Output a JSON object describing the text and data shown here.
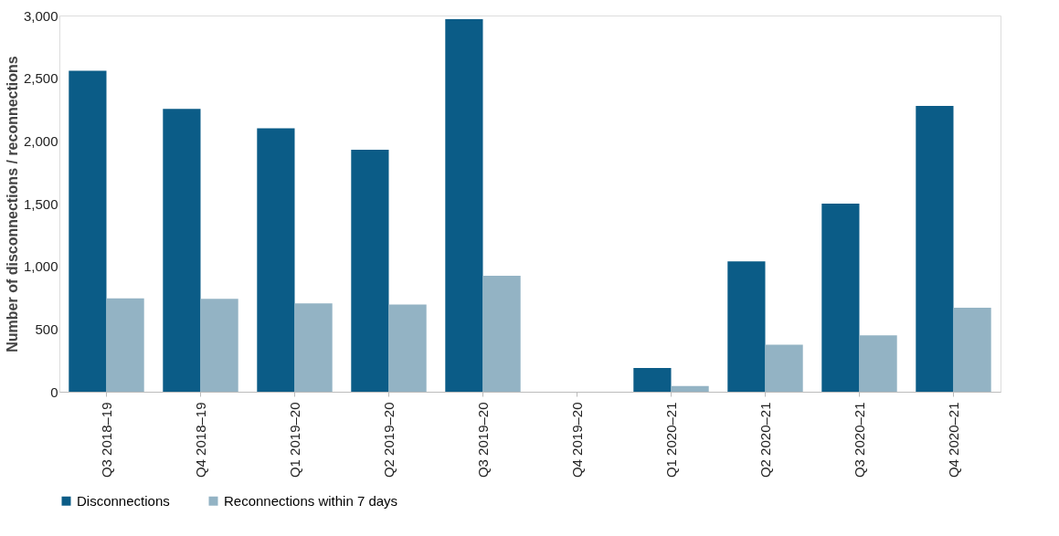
{
  "chart_data": {
    "type": "bar",
    "ylabel": "Number of disconnections / reconnections",
    "categories": [
      "Q3 2018–19",
      "Q4 2018–19",
      "Q1 2019–20",
      "Q2 2019–20",
      "Q3 2019–20",
      "Q4 2019–20",
      "Q1 2020–21",
      "Q2 2020–21",
      "Q3 2020–21",
      "Q4 2020–21"
    ],
    "series": [
      {
        "name": "Disconnections",
        "color": "#0b5c87",
        "values": [
          2560,
          2255,
          2100,
          1930,
          2970,
          null,
          190,
          1040,
          1500,
          2280
        ]
      },
      {
        "name": "Reconnections within 7 days",
        "color": "#93b3c4",
        "values": [
          745,
          740,
          705,
          695,
          925,
          null,
          45,
          375,
          450,
          670
        ]
      }
    ],
    "ylim": [
      0,
      3000
    ],
    "yticks": [
      0,
      {
        "value": 500,
        "label": "500"
      },
      {
        "value": 1000,
        "label": "1,000"
      },
      {
        "value": 1500,
        "label": "1,500"
      },
      {
        "value": 2000,
        "label": "2,000"
      },
      {
        "value": 2500,
        "label": "2,500"
      },
      {
        "value": 3000,
        "label": "3,000"
      }
    ],
    "grid": false,
    "legend": "bottom"
  }
}
